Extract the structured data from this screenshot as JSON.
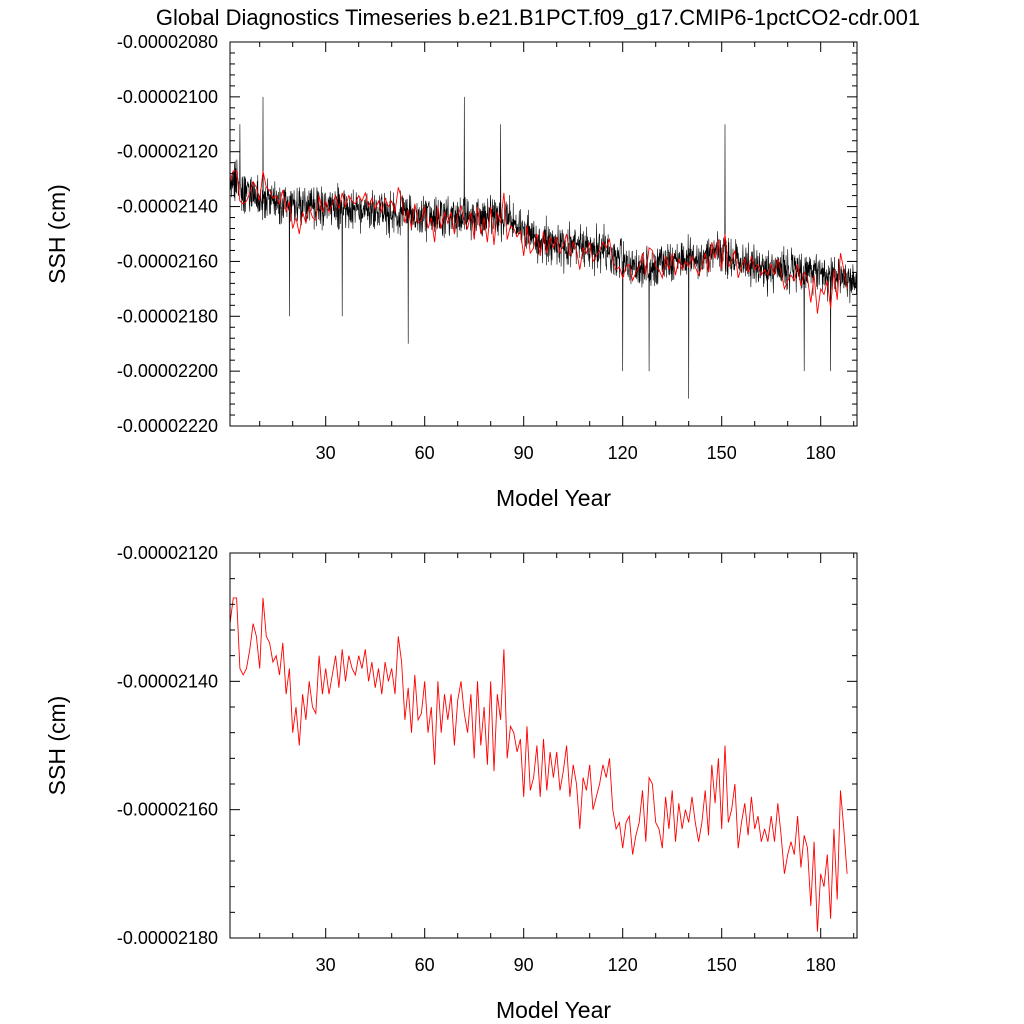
{
  "title": "Global Diagnostics Timeseries b.e21.B1PCT.f09_g17.CMIP6-1pctCO2-cdr.001",
  "colors": {
    "monthly": "#000000",
    "annual": "#ff0000",
    "frame": "#000000"
  },
  "chart_data": [
    {
      "type": "line",
      "xlabel": "Model Year",
      "ylabel": "SSH (cm)",
      "xlim": [
        1,
        191
      ],
      "ylim": [
        -2.22e-05,
        -2.08e-05
      ],
      "xticks": [
        30,
        60,
        90,
        120,
        150,
        180
      ],
      "xtick_labels": [
        "30",
        "60",
        "90",
        "120",
        "150",
        "180"
      ],
      "yticks": [
        -2.08e-05,
        -2.1e-05,
        -2.12e-05,
        -2.14e-05,
        -2.16e-05,
        -2.18e-05,
        -2.2e-05,
        -2.22e-05
      ],
      "ytick_labels": [
        "-0.00002080",
        "-0.00002100",
        "-0.00002120",
        "-0.00002140",
        "-0.00002160",
        "-0.00002180",
        "-0.00002200",
        "-0.00002220"
      ],
      "grid": false,
      "series": [
        {
          "color": "#000000",
          "stroke_width": 0.6,
          "trend": [
            [
              1,
              -2.13e-05
            ],
            [
              10,
              -2.138e-05
            ],
            [
              50,
              -2.142e-05
            ],
            [
              85,
              -2.145e-05
            ],
            [
              95,
              -2.153e-05
            ],
            [
              115,
              -2.156e-05
            ],
            [
              125,
              -2.163e-05
            ],
            [
              150,
              -2.157e-05
            ],
            [
              160,
              -2.162e-05
            ],
            [
              191,
              -2.166e-05
            ]
          ],
          "noise_amplitude": 1.1e-07,
          "spikes": [
            [
              4,
              -2.11e-05
            ],
            [
              11,
              -2.1e-05
            ],
            [
              19,
              -2.18e-05
            ],
            [
              35,
              -2.18e-05
            ],
            [
              55,
              -2.19e-05
            ],
            [
              72,
              -2.1e-05
            ],
            [
              83,
              -2.11e-05
            ],
            [
              120,
              -2.2e-05
            ],
            [
              128,
              -2.2e-05
            ],
            [
              140,
              -2.21e-05
            ],
            [
              151,
              -2.11e-05
            ],
            [
              175,
              -2.2e-05
            ],
            [
              183,
              -2.2e-05
            ]
          ],
          "points_per_year": 12
        },
        {
          "color": "#ff0000",
          "stroke_width": 0.9,
          "source": "annual"
        }
      ]
    },
    {
      "type": "line",
      "xlabel": "Model Year",
      "ylabel": "SSH (cm)",
      "xlim": [
        1,
        191
      ],
      "ylim": [
        -2.18e-05,
        -2.12e-05
      ],
      "xticks": [
        30,
        60,
        90,
        120,
        150,
        180
      ],
      "xtick_labels": [
        "30",
        "60",
        "90",
        "120",
        "150",
        "180"
      ],
      "yticks": [
        -2.12e-05,
        -2.14e-05,
        -2.16e-05,
        -2.18e-05
      ],
      "ytick_labels": [
        "-0.00002120",
        "-0.00002140",
        "-0.00002160",
        "-0.00002180"
      ],
      "grid": false,
      "series": [
        {
          "color": "#ff0000",
          "stroke_width": 0.9,
          "x_start": 1,
          "values": [
            -2.131e-05,
            -2.127e-05,
            -2.127e-05,
            -2.138e-05,
            -2.139e-05,
            -2.138e-05,
            -2.135e-05,
            -2.131e-05,
            -2.133e-05,
            -2.138e-05,
            -2.127e-05,
            -2.133e-05,
            -2.134e-05,
            -2.137e-05,
            -2.136e-05,
            -2.139e-05,
            -2.134e-05,
            -2.142e-05,
            -2.138e-05,
            -2.148e-05,
            -2.144e-05,
            -2.15e-05,
            -2.142e-05,
            -2.146e-05,
            -2.14e-05,
            -2.144e-05,
            -2.145e-05,
            -2.136e-05,
            -2.142e-05,
            -2.138e-05,
            -2.142e-05,
            -2.139e-05,
            -2.136e-05,
            -2.141e-05,
            -2.135e-05,
            -2.14e-05,
            -2.136e-05,
            -2.138e-05,
            -2.139e-05,
            -2.136e-05,
            -2.138e-05,
            -2.135e-05,
            -2.14e-05,
            -2.137e-05,
            -2.141e-05,
            -2.138e-05,
            -2.142e-05,
            -2.137e-05,
            -2.14e-05,
            -2.138e-05,
            -2.142e-05,
            -2.133e-05,
            -2.137e-05,
            -2.146e-05,
            -2.141e-05,
            -2.148e-05,
            -2.139e-05,
            -2.146e-05,
            -2.145e-05,
            -2.14e-05,
            -2.148e-05,
            -2.144e-05,
            -2.153e-05,
            -2.14e-05,
            -2.148e-05,
            -2.142e-05,
            -2.146e-05,
            -2.142e-05,
            -2.15e-05,
            -2.143e-05,
            -2.14e-05,
            -2.145e-05,
            -2.148e-05,
            -2.142e-05,
            -2.152e-05,
            -2.14e-05,
            -2.15e-05,
            -2.144e-05,
            -2.153e-05,
            -2.14e-05,
            -2.154e-05,
            -2.142e-05,
            -2.146e-05,
            -2.135e-05,
            -2.152e-05,
            -2.147e-05,
            -2.148e-05,
            -2.151e-05,
            -2.149e-05,
            -2.158e-05,
            -2.147e-05,
            -2.157e-05,
            -2.155e-05,
            -2.15e-05,
            -2.158e-05,
            -2.149e-05,
            -2.157e-05,
            -2.151e-05,
            -2.155e-05,
            -2.151e-05,
            -2.157e-05,
            -2.154e-05,
            -2.15e-05,
            -2.158e-05,
            -2.153e-05,
            -2.156e-05,
            -2.163e-05,
            -2.155e-05,
            -2.157e-05,
            -2.153e-05,
            -2.16e-05,
            -2.158e-05,
            -2.156e-05,
            -2.153e-05,
            -2.155e-05,
            -2.152e-05,
            -2.16e-05,
            -2.163e-05,
            -2.162e-05,
            -2.166e-05,
            -2.162e-05,
            -2.161e-05,
            -2.167e-05,
            -2.164e-05,
            -2.162e-05,
            -2.157e-05,
            -2.165e-05,
            -2.155e-05,
            -2.156e-05,
            -2.162e-05,
            -2.163e-05,
            -2.166e-05,
            -2.158e-05,
            -2.163e-05,
            -2.157e-05,
            -2.165e-05,
            -2.159e-05,
            -2.163e-05,
            -2.16e-05,
            -2.162e-05,
            -2.158e-05,
            -2.162e-05,
            -2.165e-05,
            -2.162e-05,
            -2.157e-05,
            -2.164e-05,
            -2.153e-05,
            -2.159e-05,
            -2.152e-05,
            -2.163e-05,
            -2.15e-05,
            -2.162e-05,
            -2.16e-05,
            -2.156e-05,
            -2.166e-05,
            -2.162e-05,
            -2.159e-05,
            -2.164e-05,
            -2.158e-05,
            -2.163e-05,
            -2.161e-05,
            -2.165e-05,
            -2.163e-05,
            -2.165e-05,
            -2.161e-05,
            -2.165e-05,
            -2.159e-05,
            -2.164e-05,
            -2.17e-05,
            -2.167e-05,
            -2.165e-05,
            -2.167e-05,
            -2.161e-05,
            -2.169e-05,
            -2.164e-05,
            -2.166e-05,
            -2.175e-05,
            -2.165e-05,
            -2.179e-05,
            -2.17e-05,
            -2.172e-05,
            -2.167e-05,
            -2.177e-05,
            -2.163e-05,
            -2.174e-05,
            -2.157e-05,
            -2.163e-05,
            -2.17e-05
          ]
        }
      ]
    }
  ]
}
